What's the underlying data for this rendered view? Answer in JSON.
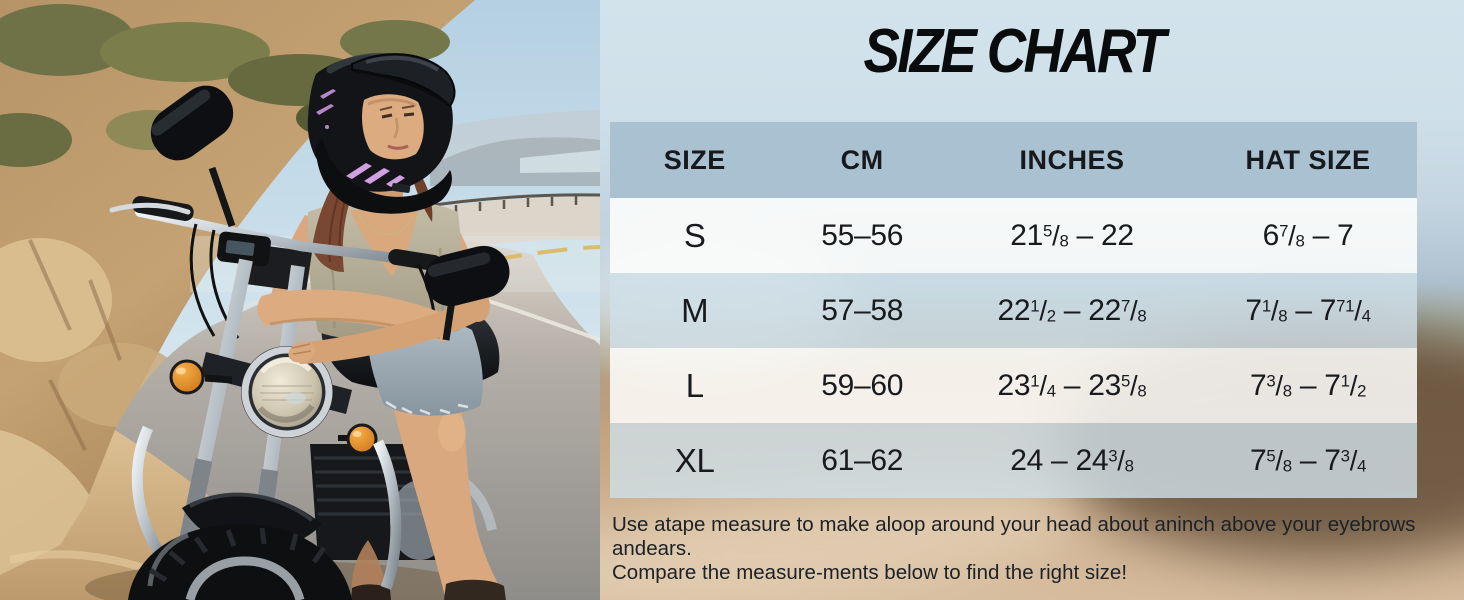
{
  "title": "SIZE CHART",
  "photo": {
    "description": "Woman wearing a black full-face motorcycle helmet with pink graphics, arms crossed, leaning on a dark cruiser motorcycle beside a coastal highway",
    "helmet_accent_color": "#d0a0e2",
    "turn_signal_color": "#e08a25"
  },
  "size_table": {
    "headers": [
      "SIZE",
      "CM",
      "INCHES",
      "HAT SIZE"
    ],
    "rows": [
      {
        "size": "S",
        "cm": "55–56",
        "inches": "21{5/8} – 22",
        "hat": "6{7/8} – 7"
      },
      {
        "size": "M",
        "cm": "57–58",
        "inches": "22{1/2} – 22{7/8}",
        "hat": "7{1/8} – 7{71/4}"
      },
      {
        "size": "L",
        "cm": "59–60",
        "inches": "23{1/4} – 23{5/8}",
        "hat": "7{3/8} – 7{1/2}"
      },
      {
        "size": "XL",
        "cm": "61–62",
        "inches": "24 – 24{3/8}",
        "hat": "7{5/8} – 7{3/4}"
      }
    ]
  },
  "note_lines": [
    "Use atape measure to make aloop around your head about aninch above your eyebrows andears.",
    "Compare the measure-ments below to find the right size!"
  ],
  "colors": {
    "header_bg": "#a9c1d0",
    "row_light": "rgba(255,255,253,0.85)",
    "row_shade": "rgba(208,224,233,0.8)",
    "title_color": "#0a0b0d",
    "text_color": "#181a1d"
  },
  "chart_data": {
    "type": "table",
    "title": "SIZE CHART",
    "columns": [
      "SIZE",
      "CM",
      "INCHES",
      "HAT SIZE"
    ],
    "rows": [
      [
        "S",
        "55–56",
        "21 5/8 – 22",
        "6 7/8 – 7"
      ],
      [
        "M",
        "57–58",
        "22 1/2 – 22 7/8",
        "7 1/8 – 7 71/4"
      ],
      [
        "L",
        "59–60",
        "23 1/4 – 23 5/8",
        "7 3/8 – 7 1/2"
      ],
      [
        "XL",
        "61–62",
        "24 – 24 3/8",
        "7 5/8 – 7 3/4"
      ]
    ],
    "note": "Use atape measure to make aloop around your head about aninch above your eyebrows andears. Compare the measure-ments below to find the right size!"
  }
}
